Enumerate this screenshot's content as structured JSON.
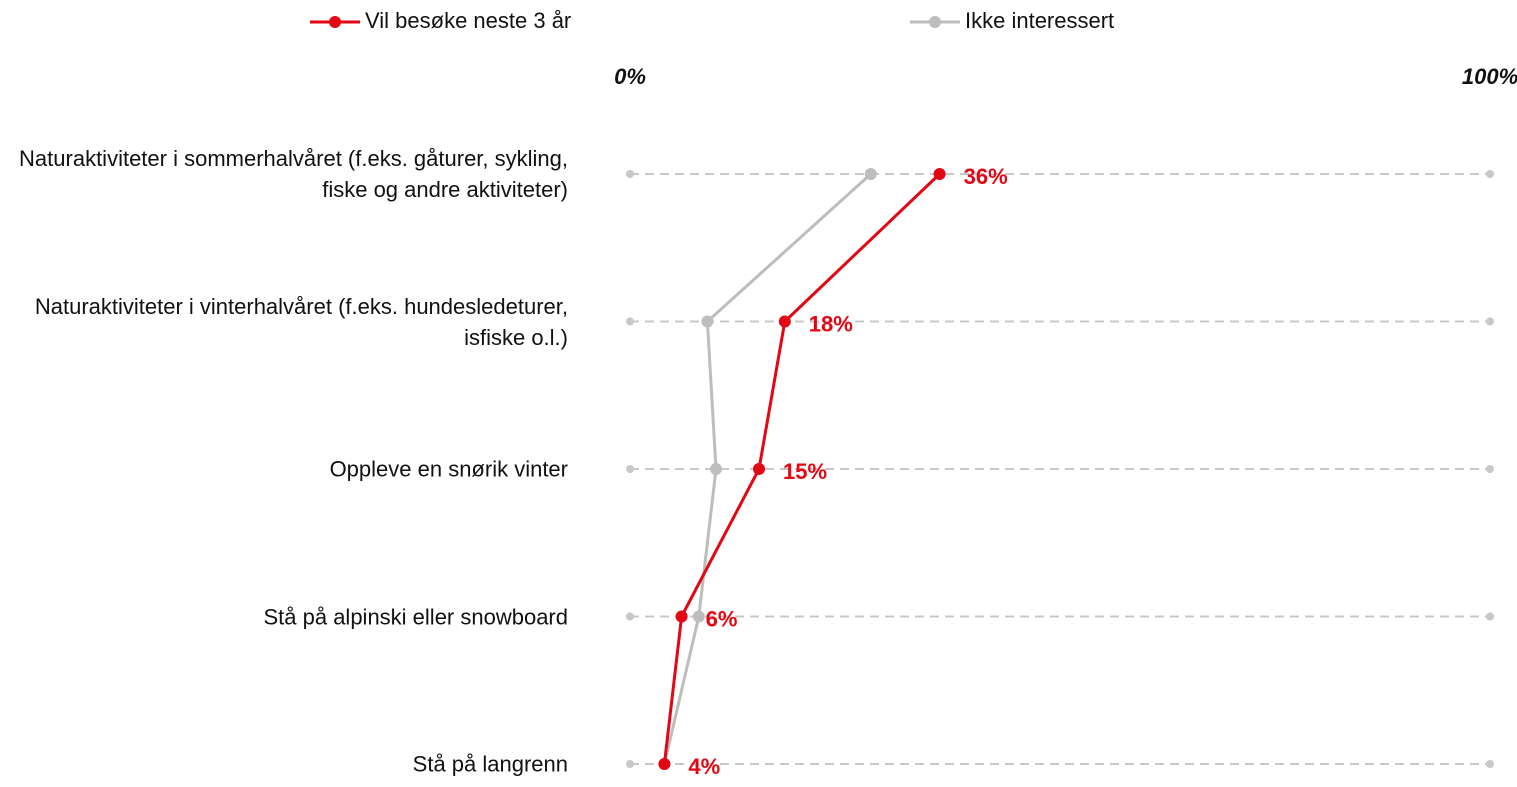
{
  "chart_data": {
    "type": "line",
    "categories": [
      "Naturaktiviteter i sommerhalvåret (f.eks. gåturer, sykling, fiske og andre aktiviteter)",
      "Naturaktiviteter i vinterhalvåret (f.eks. hundesledeturer, isfiske o.l.)",
      "Oppleve en snørik vinter",
      "Stå på alpinski eller snowboard",
      "Stå på langrenn"
    ],
    "series": [
      {
        "name": "Vil besøke neste 3 år",
        "color": "#e30613",
        "values": [
          36,
          18,
          15,
          6,
          4
        ],
        "value_labels": [
          "36%",
          "18%",
          "15%",
          "6%",
          "4%"
        ]
      },
      {
        "name": "Ikke interessert",
        "color": "#bdbdbd",
        "values": [
          28,
          9,
          10,
          8,
          4
        ]
      }
    ],
    "xlim": [
      0,
      100
    ],
    "xticks": [
      {
        "value": 0,
        "label": "0%"
      },
      {
        "value": 100,
        "label": "100%"
      }
    ],
    "legend": "top",
    "grid": true
  }
}
